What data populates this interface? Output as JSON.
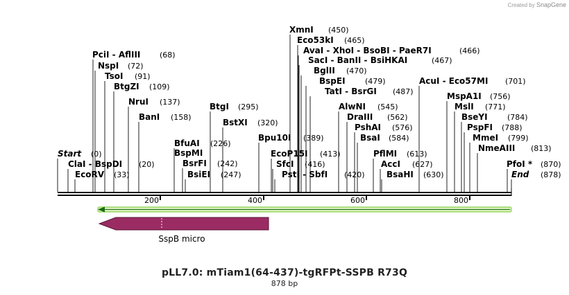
{
  "credit": {
    "prefix": "Created by",
    "brand": "SnapGene"
  },
  "map": {
    "title": "pLL7.0: mTiam1(64-437)-tgRFPt-SSPB R73Q",
    "length_label": "878 bp",
    "ruler_ticks": [
      "200",
      "400",
      "600",
      "800"
    ]
  },
  "labels": [
    {
      "names": [
        "XmnI"
      ],
      "pos": "(450)"
    },
    {
      "names": [
        "Eco53kI"
      ],
      "pos": "(465)"
    },
    {
      "names": [
        "AvaI",
        "XhoI",
        "BsoBI",
        "PaeR7I"
      ],
      "pos": "(466)"
    },
    {
      "names": [
        "SacI",
        "BanII",
        "BsiHKAI"
      ],
      "pos": "(467)"
    },
    {
      "names": [
        "BglII"
      ],
      "pos": "(470)"
    },
    {
      "names": [
        "BspEI"
      ],
      "pos": "(479)"
    },
    {
      "names": [
        "TatI",
        "BsrGI"
      ],
      "pos": "(487)"
    },
    {
      "names": [
        "PciI",
        "AflIII"
      ],
      "pos": "(68)"
    },
    {
      "names": [
        "NspI"
      ],
      "pos": "(72)"
    },
    {
      "names": [
        "TsoI"
      ],
      "pos": "(91)"
    },
    {
      "names": [
        "BtgZI"
      ],
      "pos": "(109)"
    },
    {
      "names": [
        "NruI"
      ],
      "pos": "(137)"
    },
    {
      "names": [
        "BanI"
      ],
      "pos": "(158)"
    },
    {
      "names": [
        "BtgI"
      ],
      "pos": "(295)"
    },
    {
      "names": [
        "BstXI"
      ],
      "pos": "(320)"
    },
    {
      "names": [
        "BfuAI"
      ],
      "pos": "(226)"
    },
    {
      "names": [
        "BspMI"
      ],
      "pos": ""
    },
    {
      "names": [
        "BsrFI"
      ],
      "pos": "(242)"
    },
    {
      "names": [
        "BsiEI"
      ],
      "pos": "(247)"
    },
    {
      "names": [
        "Bpu10I"
      ],
      "pos": "(389)"
    },
    {
      "names": [
        "EcoP15I"
      ],
      "pos": "(413)"
    },
    {
      "names": [
        "SfcI"
      ],
      "pos": "(416)"
    },
    {
      "names": [
        "PstI",
        "SbfI"
      ],
      "pos": "(420)"
    },
    {
      "names": [
        "AcuI",
        "Eco57MI"
      ],
      "pos": "(701)"
    },
    {
      "names": [
        "AlwNI"
      ],
      "pos": "(545)"
    },
    {
      "names": [
        "DraIII"
      ],
      "pos": "(562)"
    },
    {
      "names": [
        "PshAI"
      ],
      "pos": "(576)"
    },
    {
      "names": [
        "BsaI"
      ],
      "pos": "(584)"
    },
    {
      "names": [
        "PflMI"
      ],
      "pos": "(613)"
    },
    {
      "names": [
        "AccI"
      ],
      "pos": "(627)"
    },
    {
      "names": [
        "BsaHI"
      ],
      "pos": "(630)"
    },
    {
      "names": [
        "MspA1I"
      ],
      "pos": "(756)"
    },
    {
      "names": [
        "MslI"
      ],
      "pos": "(771)"
    },
    {
      "names": [
        "BseYI"
      ],
      "pos": "(784)"
    },
    {
      "names": [
        "PspFI"
      ],
      "pos": "(788)"
    },
    {
      "names": [
        "MmeI"
      ],
      "pos": "(799)"
    },
    {
      "names": [
        "NmeAIII"
      ],
      "pos": "(813)"
    },
    {
      "names": [
        "PfoI *"
      ],
      "pos": "(870)"
    },
    {
      "names": [
        "End"
      ],
      "pos": "(878)",
      "italic": true
    },
    {
      "names": [
        "Start"
      ],
      "pos": "(0)",
      "italic": true
    },
    {
      "names": [
        "ClaI",
        "BspDI"
      ],
      "pos": "(20)"
    },
    {
      "names": [
        "EcoRV"
      ],
      "pos": "(33)"
    }
  ],
  "features": [
    {
      "name": "SspB micro",
      "color": "#9b2c63"
    }
  ],
  "colors": {
    "primer_green": "#8fd14f",
    "backbone": "#000000"
  }
}
